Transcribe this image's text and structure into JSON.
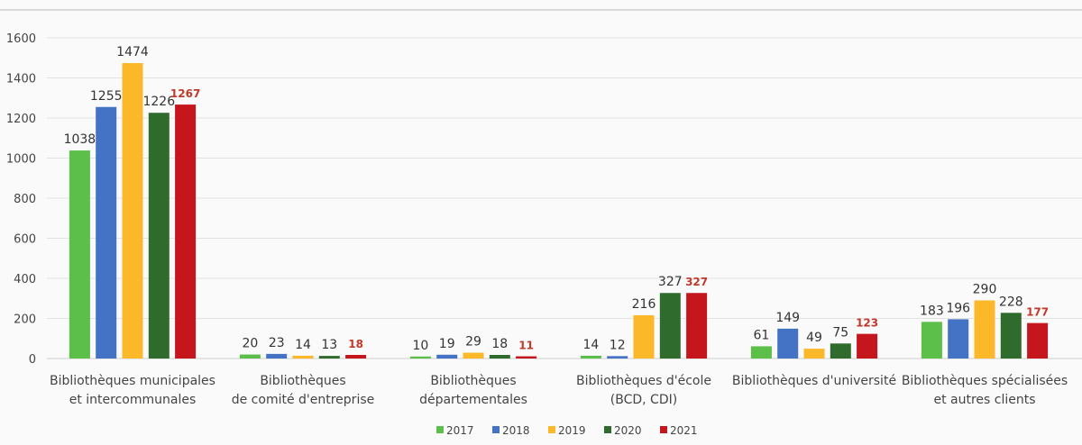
{
  "chart_data": {
    "type": "bar",
    "title": "",
    "xlabel": "",
    "ylabel": "",
    "ylim": [
      0,
      1600
    ],
    "yticks": [
      0,
      200,
      400,
      600,
      800,
      1000,
      1200,
      1400,
      1600
    ],
    "grid": true,
    "legend_position": "bottom",
    "categories": [
      [
        "Bibliothèques municipales",
        "et intercommunales"
      ],
      [
        "Bibliothèques",
        "de comité d'entreprise"
      ],
      [
        "Bibliothèques",
        "départementales"
      ],
      [
        "Bibliothèques d'école",
        "(BCD, CDI)"
      ],
      [
        "Bibliothèques d'université"
      ],
      [
        "Bibliothèques spécialisées",
        "et autres clients"
      ]
    ],
    "series": [
      {
        "name": "2017",
        "color": "#5bbf4a",
        "label_color": "#333333",
        "values": [
          1038,
          20,
          10,
          14,
          61,
          183
        ]
      },
      {
        "name": "2018",
        "color": "#4472c4",
        "label_color": "#333333",
        "values": [
          1255,
          23,
          19,
          12,
          149,
          196
        ]
      },
      {
        "name": "2019",
        "color": "#fbb829",
        "label_color": "#333333",
        "values": [
          1474,
          14,
          29,
          216,
          49,
          290
        ]
      },
      {
        "name": "2020",
        "color": "#2f6b2c",
        "label_color": "#333333",
        "values": [
          1226,
          13,
          18,
          327,
          75,
          228
        ]
      },
      {
        "name": "2021",
        "color": "#c4161c",
        "label_color": "#c0392b",
        "values": [
          1267,
          18,
          11,
          327,
          123,
          177
        ]
      }
    ]
  }
}
